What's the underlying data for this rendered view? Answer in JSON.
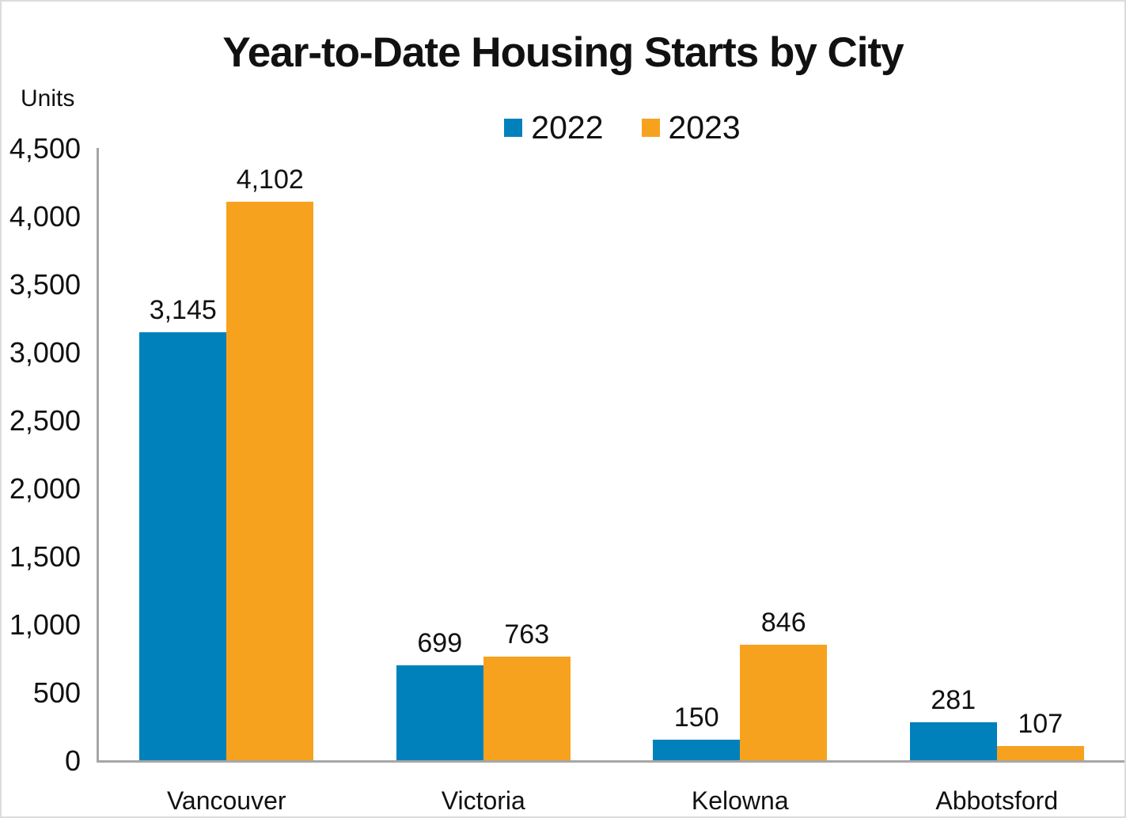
{
  "page": {
    "background": "#ffffff",
    "border_color": "#dcdcdc",
    "text_color": "#111111",
    "axis_color": "#a6a6a6"
  },
  "chart_data": {
    "type": "bar",
    "title": "Year-to-Date Housing Starts by City",
    "ylabel": "Units",
    "xlabel": "",
    "categories": [
      "Vancouver",
      "Victoria",
      "Kelowna",
      "Abbotsford"
    ],
    "series": [
      {
        "name": "2022",
        "color": "#0081BC",
        "values": [
          3145,
          699,
          150,
          281
        ],
        "labels": [
          "3,145",
          "699",
          "150",
          "281"
        ]
      },
      {
        "name": "2023",
        "color": "#F7A21E",
        "values": [
          4102,
          763,
          846,
          107
        ],
        "labels": [
          "4,102",
          "763",
          "846",
          "107"
        ]
      }
    ],
    "ylim": [
      0,
      4500
    ],
    "y_tick_step": 500,
    "y_tick_labels": [
      "0",
      "500",
      "1,000",
      "1,500",
      "2,000",
      "2,500",
      "3,000",
      "3,500",
      "4,000",
      "4,500"
    ],
    "grid": "off",
    "legend_position": "top-center",
    "data_labels": "above-bars"
  }
}
